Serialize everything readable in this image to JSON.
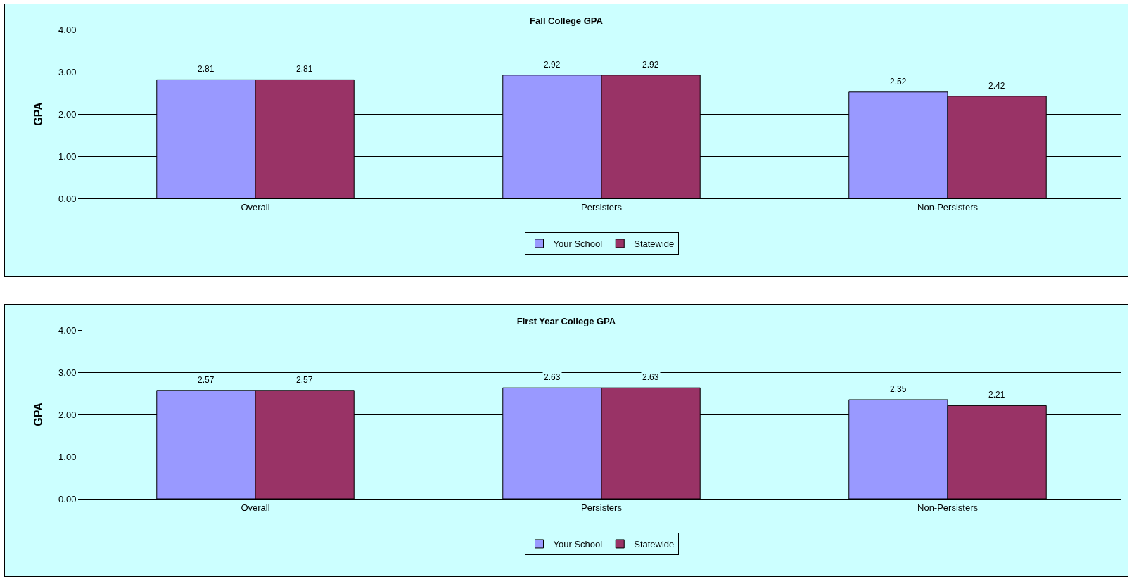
{
  "chart_data": [
    {
      "type": "bar",
      "title": "Fall College GPA",
      "ylabel": "GPA",
      "categories": [
        "Overall",
        "Persisters",
        "Non-Persisters"
      ],
      "series": [
        {
          "name": "Your School",
          "color": "#9999ff",
          "values": [
            2.81,
            2.92,
            2.52
          ]
        },
        {
          "name": "Statewide",
          "color": "#993366",
          "values": [
            2.81,
            2.92,
            2.42
          ]
        }
      ],
      "ylim": [
        0,
        4
      ],
      "yticks": [
        {
          "value": 0,
          "label": "0.00"
        },
        {
          "value": 1,
          "label": "1.00"
        },
        {
          "value": 2,
          "label": "2.00"
        },
        {
          "value": 3,
          "label": "3.00"
        },
        {
          "value": 4,
          "label": "4.00"
        }
      ],
      "grid": "y",
      "legend": "bottom",
      "data_labels": true
    },
    {
      "type": "bar",
      "title": "First Year College GPA",
      "ylabel": "GPA",
      "categories": [
        "Overall",
        "Persisters",
        "Non-Persisters"
      ],
      "series": [
        {
          "name": "Your School",
          "color": "#9999ff",
          "values": [
            2.57,
            2.63,
            2.35
          ]
        },
        {
          "name": "Statewide",
          "color": "#993366",
          "values": [
            2.57,
            2.63,
            2.21
          ]
        }
      ],
      "ylim": [
        0,
        4
      ],
      "yticks": [
        {
          "value": 0,
          "label": "0.00"
        },
        {
          "value": 1,
          "label": "1.00"
        },
        {
          "value": 2,
          "label": "2.00"
        },
        {
          "value": 3,
          "label": "3.00"
        },
        {
          "value": 4,
          "label": "4.00"
        }
      ],
      "grid": "y",
      "legend": "bottom",
      "data_labels": true
    }
  ]
}
